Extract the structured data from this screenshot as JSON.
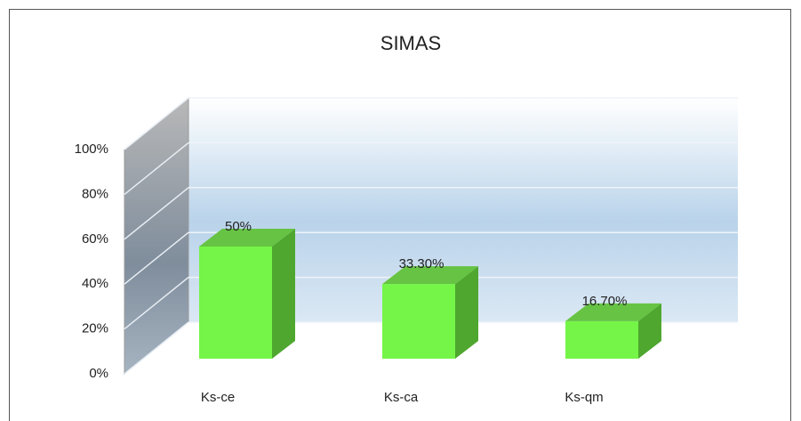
{
  "chart_data": {
    "type": "bar3d",
    "title": "SIMAS",
    "categories": [
      "Ks-ce",
      "Ks-ca",
      "Ks-qm"
    ],
    "values": [
      50,
      33.3,
      16.7
    ],
    "value_labels": [
      "50%",
      "33.30%",
      "16.70%"
    ],
    "color": "#74f548",
    "ylim": [
      0,
      100
    ],
    "yticks": [
      {
        "value": 0,
        "label": "0%"
      },
      {
        "value": 20,
        "label": "20%"
      },
      {
        "value": 40,
        "label": "40%"
      },
      {
        "value": 60,
        "label": "60%"
      },
      {
        "value": 80,
        "label": "80%"
      },
      {
        "value": 100,
        "label": "100%"
      }
    ],
    "grid": true
  }
}
